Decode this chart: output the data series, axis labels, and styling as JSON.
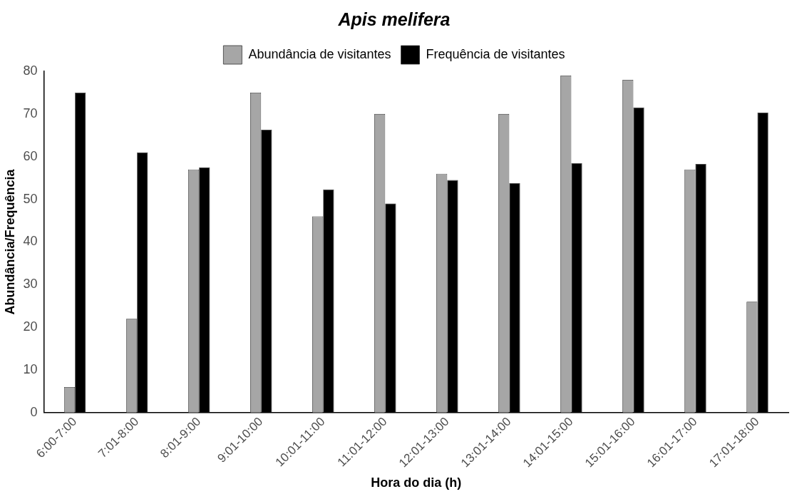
{
  "chart_data": {
    "type": "bar",
    "title": "Apis melifera",
    "xlabel": "Hora do dia (h)",
    "ylabel": "Abundância/Frequência",
    "categories": [
      "6:00-7:00",
      "7:01-8:00",
      "8:01-9:00",
      "9:01-10:00",
      "10:01-11:00",
      "11:01-12:00",
      "12:01-13:00",
      "13:01-14:00",
      "14:01-15:00",
      "15:01-16:00",
      "16:01-17:00",
      "17:01-18:00"
    ],
    "series": [
      {
        "name": "Abundância de visitantes",
        "color": "#a6a6a6",
        "values": [
          6,
          22,
          57,
          75,
          46,
          70,
          56,
          70,
          79,
          78,
          57,
          26
        ]
      },
      {
        "name": "Frequência de visitantes",
        "color": "#000000",
        "values": [
          75,
          61,
          57.5,
          66.3,
          52.3,
          49,
          54.5,
          53.8,
          58.5,
          71.5,
          58.3,
          70.3
        ]
      }
    ],
    "ylim": [
      0,
      80
    ],
    "yticks": [
      0,
      10,
      20,
      30,
      40,
      50,
      60,
      70,
      80
    ],
    "grid": false,
    "legend": "top"
  }
}
